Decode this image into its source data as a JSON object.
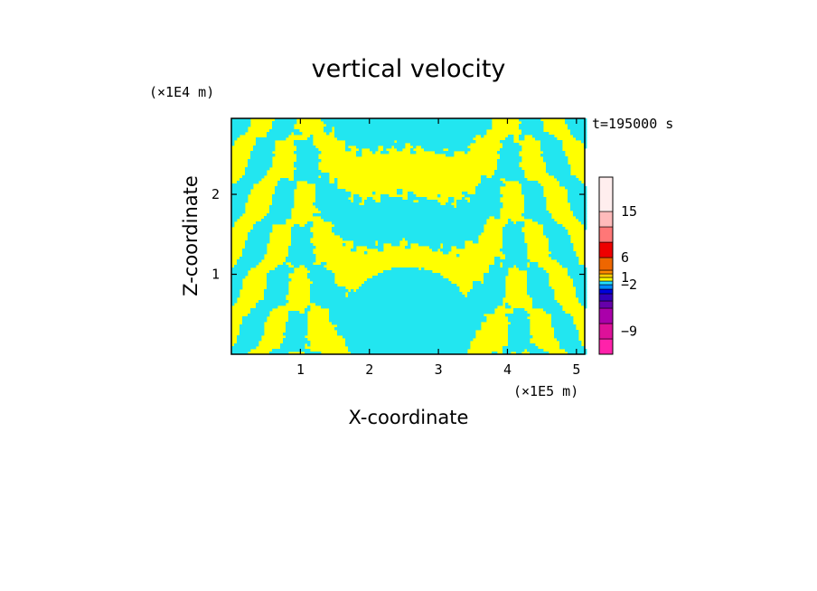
{
  "chart_data": {
    "type": "heatmap",
    "title": "vertical velocity",
    "xlabel": "X-coordinate",
    "ylabel": "Z-coordinate",
    "x_unit": "(×1E5 m)",
    "y_unit": "(×1E4 m)",
    "time_label": "t=195000 s",
    "xlim": [
      0,
      5.12
    ],
    "ylim": [
      0,
      2.95
    ],
    "x_ticks": [
      1,
      2,
      3,
      4,
      5
    ],
    "y_ticks": [
      1,
      2
    ],
    "grid": false,
    "colorbar": {
      "ticks": [
        {
          "value": 15,
          "label": "15"
        },
        {
          "value": 6,
          "label": "6"
        },
        {
          "value": 1,
          "label": "1"
        },
        {
          "value": -2,
          "label": "−2"
        },
        {
          "value": -9,
          "label": "−9"
        }
      ],
      "levels": [
        {
          "color": "#ff22aa"
        },
        {
          "color": "#dd1199"
        },
        {
          "color": "#aa00aa"
        },
        {
          "color": "#6600aa"
        },
        {
          "color": "#3300bb"
        },
        {
          "color": "#0000dd"
        },
        {
          "color": "#0088ff"
        },
        {
          "color": "#22ddff"
        },
        {
          "color": "#ffff00"
        },
        {
          "color": "#ffcc00"
        },
        {
          "color": "#ff8800"
        },
        {
          "color": "#ee6600"
        },
        {
          "color": "#ee0000"
        },
        {
          "color": "#ff7777"
        },
        {
          "color": "#ffbbbb"
        },
        {
          "color": "#ffeeee"
        }
      ]
    },
    "field_colors": {
      "positive": "#ffff00",
      "negative": "#22e6f0"
    }
  }
}
